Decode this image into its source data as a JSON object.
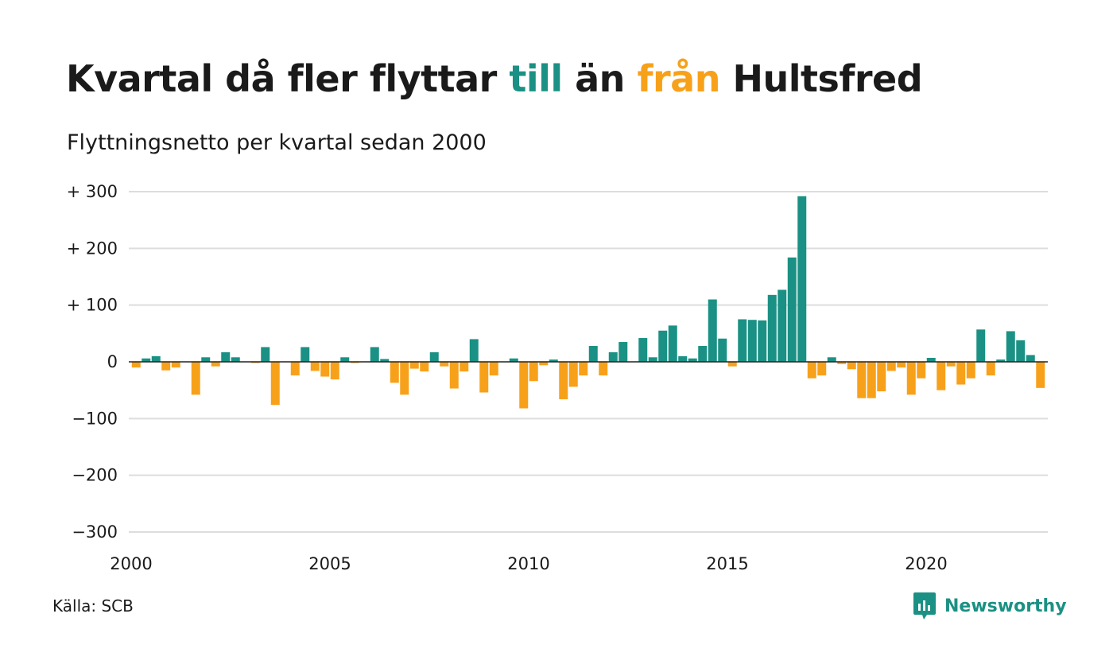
{
  "title": {
    "part1": "Kvartal då fler flyttar ",
    "till": "till",
    "part2": " än ",
    "fran": "från",
    "part3": " Hultsfred"
  },
  "subtitle": "Flyttningsnetto per kvartal sedan 2000",
  "source": "Källa: SCB",
  "brand": "Newsworthy",
  "colors": {
    "positive": "#1a9184",
    "negative": "#f7a11a",
    "grid": "#dddddd",
    "text": "#1a1a1a"
  },
  "chart_data": {
    "type": "bar",
    "title": "Kvartal då fler flyttar till än från Hultsfred",
    "subtitle": "Flyttningsnetto per kvartal sedan 2000",
    "x_start": "2000",
    "quarters_per_year": 4,
    "ylim": [
      -300,
      300
    ],
    "yticks": [
      300,
      200,
      100,
      0,
      -100,
      -200,
      -300
    ],
    "ytick_labels": [
      "+ 300",
      "+ 200",
      "+ 100",
      "0",
      "−100",
      "−200",
      "−300"
    ],
    "xticks": [
      "2000",
      "2005",
      "2010",
      "2015",
      "2020"
    ],
    "grid": true,
    "values": [
      -10,
      6,
      10,
      -15,
      -10,
      0,
      -58,
      8,
      -8,
      17,
      8,
      0,
      -2,
      26,
      -76,
      0,
      -24,
      26,
      -16,
      -26,
      -31,
      8,
      -2,
      0,
      26,
      5,
      -37,
      -58,
      -12,
      -17,
      17,
      -8,
      -47,
      -17,
      40,
      -54,
      -24,
      0,
      6,
      -82,
      -34,
      -6,
      4,
      -66,
      -44,
      -24,
      28,
      -24,
      17,
      35,
      0,
      42,
      8,
      55,
      64,
      10,
      6,
      28,
      110,
      41,
      -8,
      75,
      74,
      73,
      118,
      127,
      184,
      292,
      -29,
      -24,
      8,
      -4,
      -13,
      -64,
      -64,
      -52,
      -16,
      -10,
      -58,
      -29,
      7,
      -50,
      -8,
      -40,
      -29,
      57,
      -24,
      4,
      54,
      38,
      12,
      -46
    ]
  }
}
